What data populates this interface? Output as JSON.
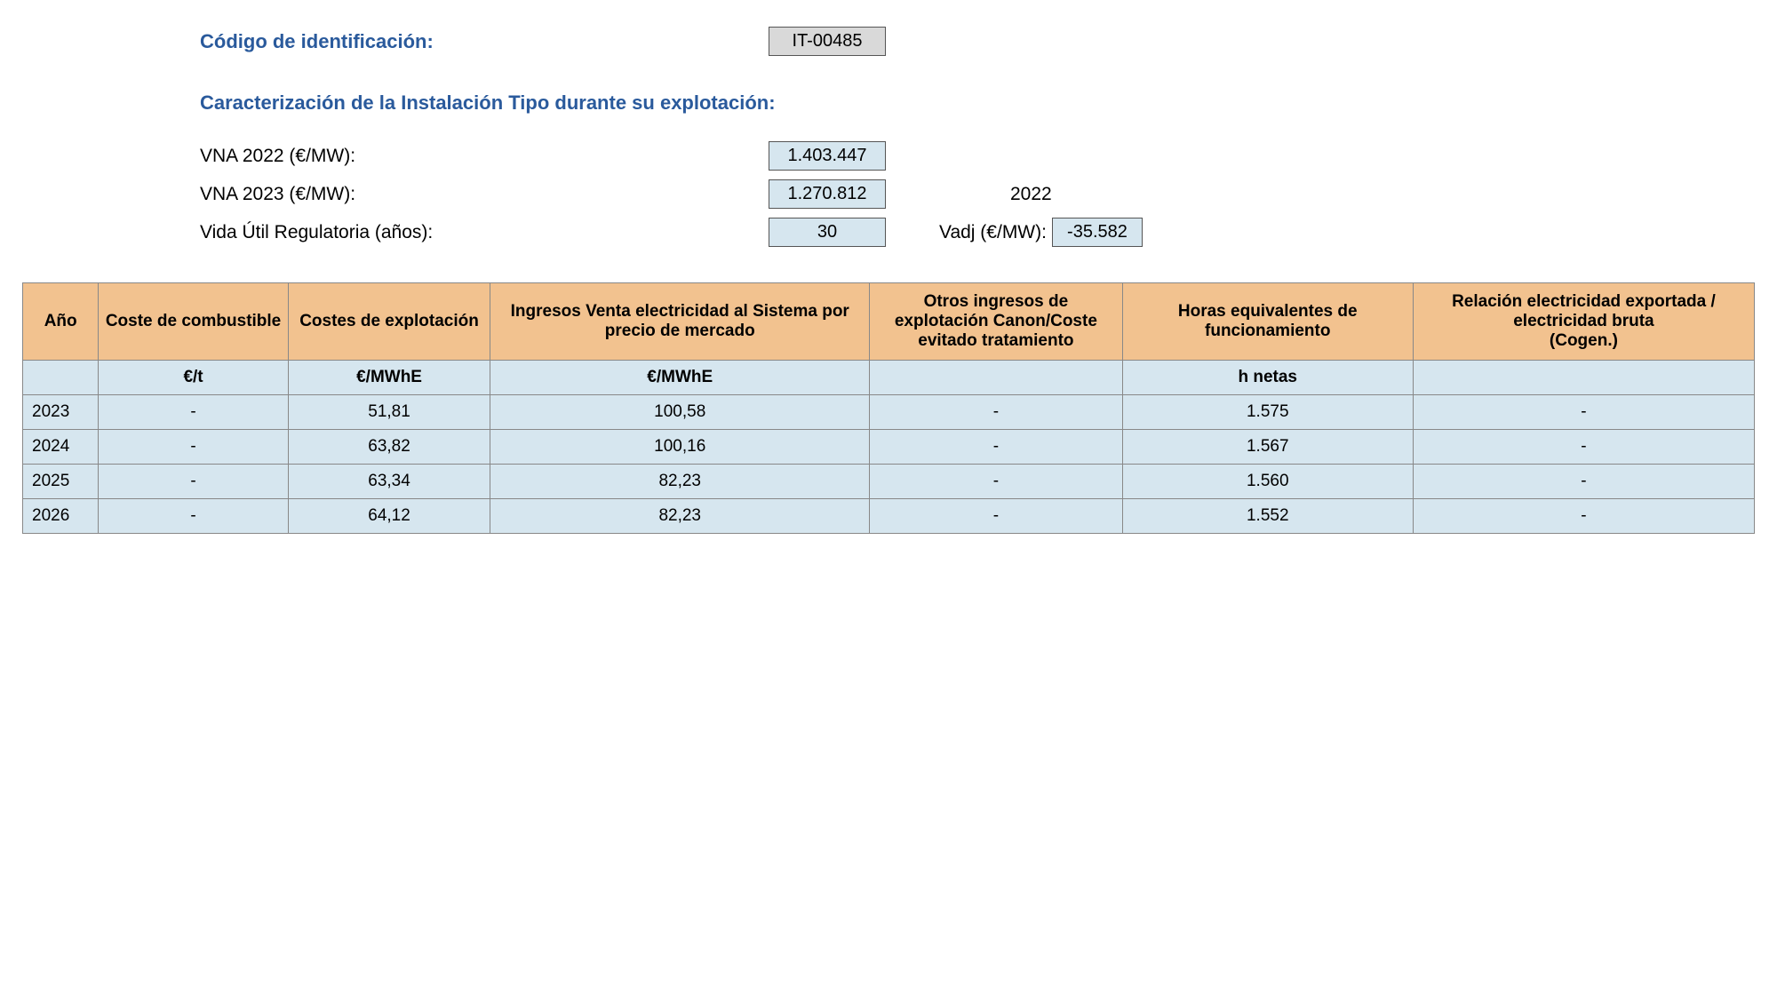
{
  "header": {
    "id_label": "Código de identificación:",
    "id_value": "IT-00485",
    "section_title": "Caracterización de la Instalación Tipo durante su explotación:",
    "vna2022_label": "VNA 2022 (€/MW):",
    "vna2022_value": "1.403.447",
    "vna2023_label": "VNA 2023 (€/MW):",
    "vna2023_value": "1.270.812",
    "year_ref": "2022",
    "vida_label": "Vida Útil Regulatoria (años):",
    "vida_value": "30",
    "vadj_label": "Vadj (€/MW):",
    "vadj_value": "-35.582"
  },
  "table": {
    "header_bg": "#f2c28f",
    "cell_bg": "#d6e6ef",
    "columns": [
      "Año",
      "Coste de combustible",
      "Costes de explotación",
      "Ingresos Venta electricidad al Sistema por precio de mercado",
      "Otros ingresos de explotación Canon/Coste evitado tratamiento",
      "Horas equivalentes de funcionamiento",
      "Relación electricidad exportada / electricidad bruta\n(Cogen.)"
    ],
    "col_widths": [
      "60px",
      "150px",
      "160px",
      "300px",
      "200px",
      "230px",
      "270px"
    ],
    "units": [
      "",
      "€/t",
      "€/MWhE",
      "€/MWhE",
      "",
      "h netas",
      ""
    ],
    "rows": [
      [
        "2023",
        "-",
        "51,81",
        "100,58",
        "-",
        "1.575",
        "-"
      ],
      [
        "2024",
        "-",
        "63,82",
        "100,16",
        "-",
        "1.567",
        "-"
      ],
      [
        "2025",
        "-",
        "63,34",
        "82,23",
        "-",
        "1.560",
        "-"
      ],
      [
        "2026",
        "-",
        "64,12",
        "82,23",
        "-",
        "1.552",
        "-"
      ]
    ]
  }
}
